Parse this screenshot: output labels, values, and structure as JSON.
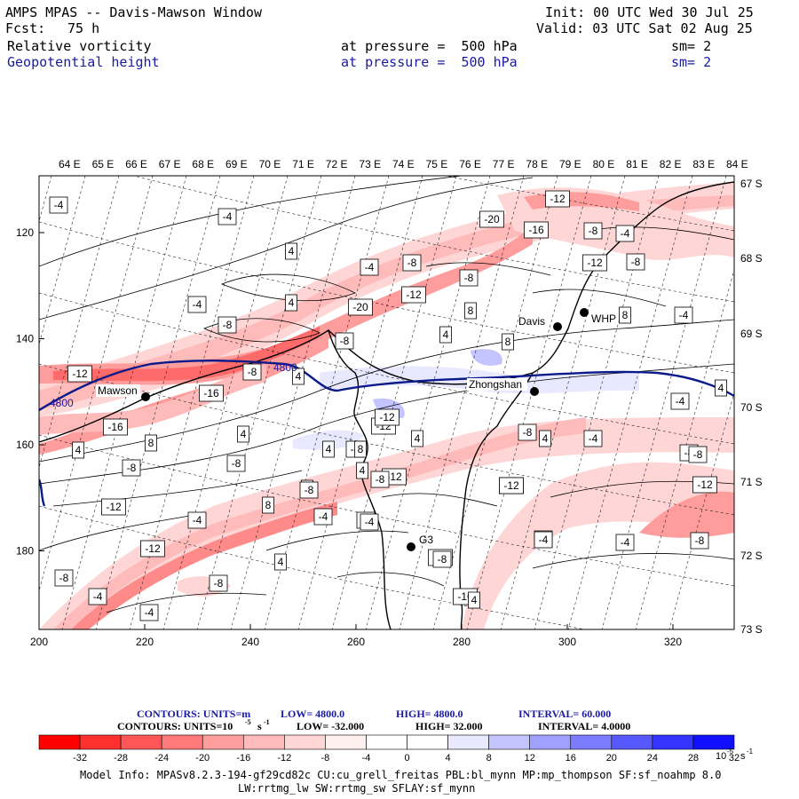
{
  "header": {
    "title": "AMPS MPAS -- Davis-Mawson Window",
    "fcst_label": "Fcst:",
    "fcst_value": "75 h",
    "init": "Init: 00 UTC Wed 30 Jul 25",
    "valid": "Valid: 03 UTC Sat 02 Aug 25"
  },
  "fields": [
    {
      "name": "Relative vorticity",
      "level": "at pressure =  500 hPa",
      "sm": "sm= 2",
      "color": "#000000"
    },
    {
      "name": "Geopotential height",
      "level": "at pressure =  500 hPa",
      "sm": "sm= 2",
      "color": "#1a1aa0"
    }
  ],
  "map": {
    "top_lon_labels": [
      "64 E",
      "65 E",
      "66 E",
      "67 E",
      "68 E",
      "69 E",
      "70 E",
      "71 E",
      "72 E",
      "73 E",
      "74 E",
      "75 E",
      "76 E",
      "77 E",
      "78 E",
      "79 E",
      "80 E",
      "81 E",
      "82 E",
      "83 E",
      "84 E"
    ],
    "right_lat_labels": [
      "67 S",
      "68 S",
      "69 S",
      "70 S",
      "71 S",
      "72 S",
      "73 S"
    ],
    "x_ticks": [
      "200",
      "220",
      "240",
      "260",
      "280",
      "300",
      "320"
    ],
    "y_ticks": [
      "120",
      "140",
      "160",
      "180"
    ],
    "stations": [
      {
        "name": "Mawson"
      },
      {
        "name": "Davis"
      },
      {
        "name": "WHP"
      },
      {
        "name": "Zhongshan"
      },
      {
        "name": "G3"
      }
    ],
    "height_contour_label": "4800",
    "contour_labels": [
      "-4",
      "-4",
      "4",
      "-4",
      "-4",
      "-8",
      "-12",
      "-20",
      "-8",
      "-20",
      "-16",
      "-12",
      "-8",
      "-4",
      "-8",
      "-12",
      "-8",
      "8",
      "4",
      "8",
      "-8",
      "4",
      "-8",
      "-12",
      "-16",
      "4",
      "8",
      "4",
      "-16",
      "-8",
      "-4",
      "-4",
      "-12",
      "-8",
      "4",
      "-4",
      "-8",
      "-12",
      "-4",
      "4",
      "-12",
      "-8",
      "-12",
      "-4",
      "-16",
      "-4",
      "-8",
      "-8",
      "-4",
      "-4",
      "-12",
      "-8",
      "-4",
      "-4",
      "-12",
      "4",
      "4",
      "-4",
      "8",
      "-16",
      "8",
      "4",
      "4",
      "4",
      "8",
      "-12",
      "-8",
      "-4",
      "4",
      "-8",
      "-8",
      "-12",
      "-4",
      "4",
      "-8"
    ]
  },
  "contour_info": [
    {
      "prefix": "CONTOURS:  UNITS=m",
      "low": "LOW=  4800.0",
      "high": "HIGH=  4800.0",
      "interval": "INTERVAL=    60.000",
      "color": "#1a1aa0"
    },
    {
      "prefix": "CONTOURS:  UNITS=10",
      "exp": "-5",
      "unit": "s",
      "exp2": "-1",
      "low": "LOW=  -32.000",
      "high": "HIGH=   32.000",
      "interval": "INTERVAL=    4.0000",
      "color": "#000000"
    }
  ],
  "colorbar": {
    "tick_labels": [
      "-32",
      "-28",
      "-24",
      "-20",
      "-16",
      "-12",
      "-8",
      "-4",
      "0",
      "4",
      "8",
      "12",
      "16",
      "20",
      "24",
      "28",
      "32"
    ],
    "unit_base": "10",
    "unit_exp": "-5",
    "unit_s": "s",
    "unit_exp2": "-1",
    "colors": [
      "#ff0000",
      "#ff3030",
      "#ff5757",
      "#ff7a7a",
      "#ff9c9c",
      "#ffbaba",
      "#ffd6d6",
      "#fff0f0",
      "#ffffff",
      "#ffffff",
      "#e8e8ff",
      "#c4c4ff",
      "#a0a0ff",
      "#7c7cff",
      "#5858ff",
      "#3434ff",
      "#1010ff"
    ]
  },
  "footer": {
    "line1": "Model Info: MPASv8.2.3-194-gf29cd82c CU:cu_grell_freitas PBL:bl_mynn MP:mp_thompson SF:sf_noahmp 8.0",
    "line2": "LW:rrtmg_lw SW:rrtmg_sw SFLAY:sf_mynn"
  }
}
